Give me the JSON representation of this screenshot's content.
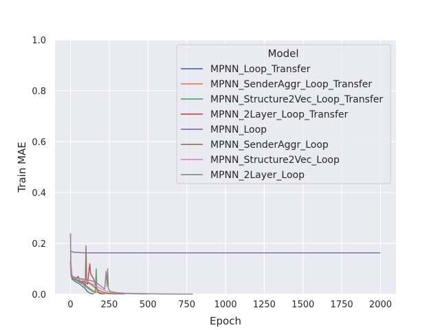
{
  "chart_data": {
    "type": "line",
    "title": "",
    "xlabel": "Epoch",
    "ylabel": "Train MAE",
    "xlim": [
      -100,
      2100
    ],
    "ylim": [
      0,
      1.0
    ],
    "x_ticks": [
      0,
      250,
      500,
      750,
      1000,
      1250,
      1500,
      1750,
      2000
    ],
    "y_ticks": [
      0.0,
      0.2,
      0.4,
      0.6,
      0.8,
      1.0
    ],
    "x_tick_labels": [
      "0",
      "250",
      "500",
      "750",
      "1000",
      "1250",
      "1500",
      "1750",
      "2000"
    ],
    "y_tick_labels": [
      "0.0",
      "0.2",
      "0.4",
      "0.6",
      "0.8",
      "1.0"
    ],
    "grid": true,
    "legend_title": "Model",
    "legend_position": "top-right",
    "series": [
      {
        "name": "MPNN_Loop_Transfer",
        "color": "#4c72b0",
        "points": [
          [
            0,
            0.13
          ],
          [
            3,
            0.08
          ],
          [
            10,
            0.06
          ],
          [
            30,
            0.05
          ],
          [
            60,
            0.04
          ],
          [
            90,
            0.025
          ],
          [
            110,
            0.01
          ],
          [
            130,
            0.003
          ],
          [
            150,
            0.001
          ]
        ]
      },
      {
        "name": "MPNN_SenderAggr_Loop_Transfer",
        "color": "#dd8452",
        "points": [
          [
            0,
            0.12
          ],
          [
            3,
            0.08
          ],
          [
            10,
            0.065
          ],
          [
            40,
            0.055
          ],
          [
            70,
            0.045
          ],
          [
            100,
            0.035
          ],
          [
            130,
            0.02
          ],
          [
            160,
            0.01
          ],
          [
            200,
            0.004
          ],
          [
            250,
            0.002
          ],
          [
            300,
            0.001
          ]
        ]
      },
      {
        "name": "MPNN_Structure2Vec_Loop_Transfer",
        "color": "#55a868",
        "points": [
          [
            0,
            0.11
          ],
          [
            5,
            0.07
          ],
          [
            20,
            0.06
          ],
          [
            50,
            0.05
          ],
          [
            80,
            0.04
          ],
          [
            100,
            0.03
          ],
          [
            120,
            0.02
          ],
          [
            140,
            0.012
          ],
          [
            160,
            0.006
          ],
          [
            166,
            0.1
          ],
          [
            170,
            0.02
          ],
          [
            180,
            0.005
          ],
          [
            200,
            0.002
          ],
          [
            220,
            0.001
          ]
        ]
      },
      {
        "name": "MPNN_2Layer_Loop_Transfer",
        "color": "#c44e52",
        "points": [
          [
            0,
            0.12
          ],
          [
            5,
            0.07
          ],
          [
            30,
            0.06
          ],
          [
            50,
            0.07
          ],
          [
            60,
            0.05
          ],
          [
            90,
            0.05
          ],
          [
            110,
            0.04
          ],
          [
            124,
            0.12
          ],
          [
            130,
            0.08
          ],
          [
            140,
            0.07
          ],
          [
            150,
            0.06
          ],
          [
            160,
            0.04
          ],
          [
            170,
            0.02
          ],
          [
            180,
            0.008
          ],
          [
            190,
            0.003
          ],
          [
            200,
            0.001
          ]
        ]
      },
      {
        "name": "MPNN_Loop",
        "color": "#8172b3",
        "points": [
          [
            0,
            0.17
          ],
          [
            20,
            0.165
          ],
          [
            100,
            0.163
          ],
          [
            500,
            0.163
          ],
          [
            1000,
            0.163
          ],
          [
            1500,
            0.163
          ],
          [
            2000,
            0.163
          ]
        ]
      },
      {
        "name": "MPNN_SenderAggr_Loop",
        "color": "#937860",
        "points": [
          [
            0,
            0.24
          ],
          [
            2,
            0.12
          ],
          [
            8,
            0.07
          ],
          [
            30,
            0.06
          ],
          [
            60,
            0.05
          ],
          [
            85,
            0.045
          ],
          [
            95,
            0.03
          ],
          [
            100,
            0.19
          ],
          [
            104,
            0.06
          ],
          [
            110,
            0.045
          ],
          [
            130,
            0.04
          ],
          [
            150,
            0.03
          ],
          [
            170,
            0.02
          ],
          [
            200,
            0.01
          ],
          [
            230,
            0.005
          ],
          [
            280,
            0.002
          ],
          [
            350,
            0.001
          ]
        ]
      },
      {
        "name": "MPNN_Structure2Vec_Loop",
        "color": "#da8bc3",
        "points": [
          [
            0,
            0.12
          ],
          [
            5,
            0.08
          ],
          [
            20,
            0.065
          ],
          [
            50,
            0.06
          ],
          [
            80,
            0.055
          ],
          [
            110,
            0.05
          ],
          [
            140,
            0.04
          ],
          [
            170,
            0.03
          ],
          [
            200,
            0.02
          ],
          [
            230,
            0.012
          ],
          [
            260,
            0.008
          ],
          [
            300,
            0.005
          ],
          [
            350,
            0.003
          ],
          [
            400,
            0.002
          ],
          [
            450,
            0.001
          ],
          [
            500,
            0.0005
          ]
        ]
      },
      {
        "name": "MPNN_2Layer_Loop",
        "color": "#8c8c8c",
        "points": [
          [
            0,
            0.24
          ],
          [
            2,
            0.12
          ],
          [
            10,
            0.07
          ],
          [
            40,
            0.065
          ],
          [
            80,
            0.06
          ],
          [
            120,
            0.055
          ],
          [
            150,
            0.05
          ],
          [
            180,
            0.04
          ],
          [
            200,
            0.03
          ],
          [
            220,
            0.02
          ],
          [
            230,
            0.09
          ],
          [
            236,
            0.03
          ],
          [
            240,
            0.1
          ],
          [
            245,
            0.02
          ],
          [
            260,
            0.01
          ],
          [
            300,
            0.006
          ],
          [
            350,
            0.004
          ],
          [
            400,
            0.003
          ],
          [
            500,
            0.002
          ],
          [
            600,
            0.001
          ],
          [
            700,
            0.0008
          ],
          [
            790,
            0.0005
          ]
        ]
      }
    ]
  }
}
